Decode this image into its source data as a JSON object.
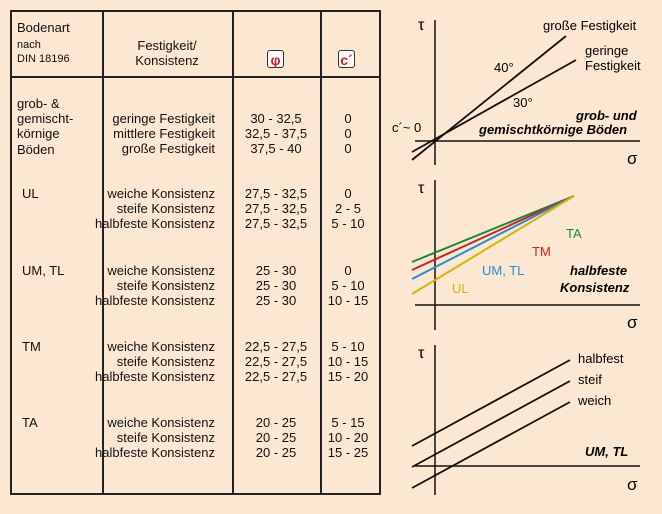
{
  "header": {
    "soil_title": "Bodenart",
    "soil_sub1": "nach",
    "soil_sub2": "DIN 18196",
    "strength_line1": "Festigkeit/",
    "strength_line2": "Konsistenz",
    "phi": "φ",
    "cohesion": "c´"
  },
  "groups": [
    {
      "soil": [
        "grob- &",
        "gemischt-",
        "körnige",
        "Böden"
      ],
      "rows": [
        {
          "label": "geringe Festigkeit",
          "phi": "30 - 32,5",
          "c": "0"
        },
        {
          "label": "mittlere Festigkeit",
          "phi": "32,5 - 37,5",
          "c": "0"
        },
        {
          "label": "große Festigkeit",
          "phi": "37,5 - 40",
          "c": "0"
        }
      ]
    },
    {
      "soil": [
        "UL"
      ],
      "rows": [
        {
          "label": "weiche Konsistenz",
          "phi": "27,5 - 32,5",
          "c": "0"
        },
        {
          "label": "steife Konsistenz",
          "phi": "27,5 - 32,5",
          "c": "2 - 5"
        },
        {
          "label": "halbfeste Konsistenz",
          "phi": "27,5 - 32,5",
          "c": "5 - 10"
        }
      ]
    },
    {
      "soil": [
        "UM, TL"
      ],
      "rows": [
        {
          "label": "weiche Konsistenz",
          "phi": "25 - 30",
          "c": "0"
        },
        {
          "label": "steife Konsistenz",
          "phi": "25 - 30",
          "c": "5 - 10"
        },
        {
          "label": "halbfeste Konsistenz",
          "phi": "25 - 30",
          "c": "10 - 15"
        }
      ]
    },
    {
      "soil": [
        "TM"
      ],
      "rows": [
        {
          "label": "weiche Konsistenz",
          "phi": "22,5 - 27,5",
          "c": "5 - 10"
        },
        {
          "label": "steife Konsistenz",
          "phi": "22,5 - 27,5",
          "c": "10 - 15"
        },
        {
          "label": "halbfeste Konsistenz",
          "phi": "22,5 - 27,5",
          "c": "15 - 20"
        }
      ]
    },
    {
      "soil": [
        "TA"
      ],
      "rows": [
        {
          "label": "weiche Konsistenz",
          "phi": "20 - 25",
          "c": "5 - 15"
        },
        {
          "label": "steife Konsistenz",
          "phi": "20 - 25",
          "c": "10 - 20"
        },
        {
          "label": "halbfeste Konsistenz",
          "phi": "20 - 25",
          "c": "15 - 25"
        }
      ]
    }
  ],
  "diagrams": [
    {
      "tau": "τ",
      "sigma": "σ",
      "labels": {
        "strong": "große Festigkeit",
        "weak1": "geringe",
        "weak2": "Festigkeit",
        "angle40": "40°",
        "angle30": "30°",
        "c0": "c´~ 0",
        "caption1": "grob- und",
        "caption2": "gemischtkörnige Böden"
      }
    },
    {
      "tau": "τ",
      "sigma": "σ",
      "labels": {
        "ta": "TA",
        "tm": "TM",
        "umtl": "UM, TL",
        "ul": "UL",
        "caption1": "halbfeste",
        "caption2": "Konsistenz"
      },
      "colors": {
        "ta": "#1a8a3a",
        "tm": "#d42020",
        "umtl": "#1e8fd8",
        "ul": "#d8b400"
      }
    },
    {
      "tau": "τ",
      "sigma": "σ",
      "labels": {
        "halbfest": "halbfest",
        "steif": "steif",
        "weich": "weich",
        "caption": "UM, TL"
      }
    }
  ]
}
